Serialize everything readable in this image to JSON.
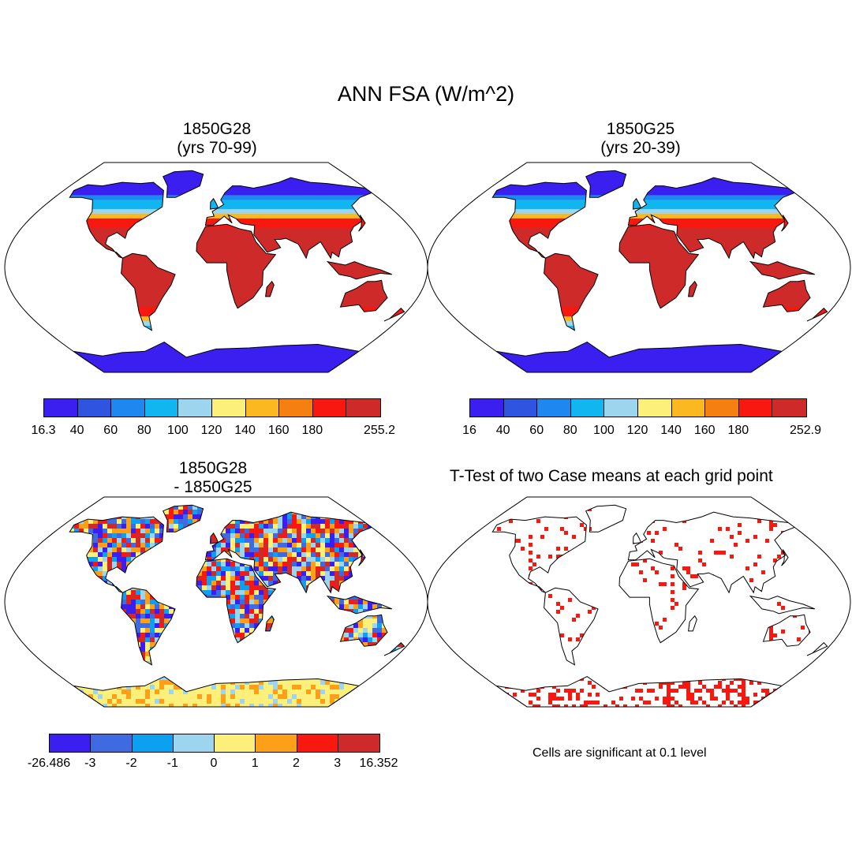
{
  "title": "ANN FSA (W/m^2)",
  "panels": [
    {
      "id": "case1",
      "title_line1": "1850G28",
      "title_line2": "(yrs 70-99)",
      "colorbar": {
        "colors": [
          "#3b1ff0",
          "#2f55e0",
          "#1e88f0",
          "#11b5f0",
          "#9ed5ee",
          "#fcf07a",
          "#fbb820",
          "#f57f10",
          "#f81810",
          "#cf2a2a"
        ],
        "labels": [
          "16.3",
          "40",
          "60",
          "80",
          "100",
          "120",
          "140",
          "160",
          "180",
          "255.2"
        ]
      }
    },
    {
      "id": "case2",
      "title_line1": "1850G25",
      "title_line2": "(yrs 20-39)",
      "colorbar": {
        "colors": [
          "#3b1ff0",
          "#2f55e0",
          "#1e88f0",
          "#11b5f0",
          "#9ed5ee",
          "#fcf07a",
          "#fbb820",
          "#f57f10",
          "#f81810",
          "#cf2a2a"
        ],
        "labels": [
          "16",
          "40",
          "60",
          "80",
          "100",
          "120",
          "140",
          "160",
          "180",
          "252.9"
        ]
      }
    },
    {
      "id": "diff",
      "title_line1": "1850G28",
      "title_line2": "- 1850G25",
      "colorbar": {
        "colors": [
          "#3b1ff0",
          "#3f6ae0",
          "#0ea0f0",
          "#9ed5ee",
          "#fcf07a",
          "#fba018",
          "#f81810",
          "#cf2a2a"
        ],
        "labels": [
          "-26.486",
          "-3",
          "-2",
          "-1",
          "0",
          "1",
          "2",
          "3",
          "16.352"
        ]
      }
    },
    {
      "id": "ttest",
      "title_line1": "T-Test of two Case means at each grid point",
      "note": "Cells are significant at 0.1 level"
    }
  ]
}
